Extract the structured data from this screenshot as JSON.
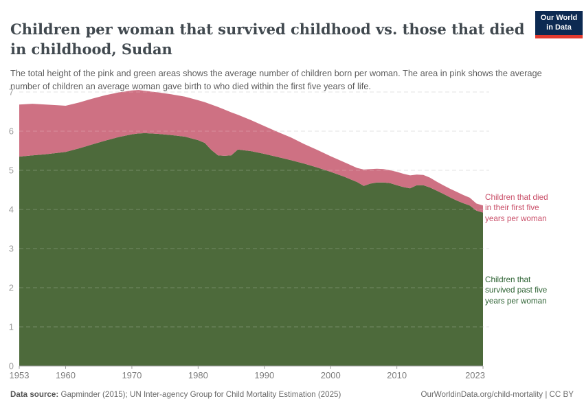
{
  "header": {
    "title": "Children per woman that survived childhood vs. those that died in childhood, Sudan",
    "subtitle": "The total height of the pink and green areas shows the average number of children born per woman. The area in pink shows the average number of children an average woman gave birth to who died within the first five years of life.",
    "logo": {
      "line1": "Our World",
      "line2": "in Data",
      "bg_color": "#0c2a52",
      "accent_color": "#e23a2e"
    }
  },
  "chart_data": {
    "type": "area",
    "stacked": true,
    "title": "Children per woman that survived childhood vs. those that died in childhood, Sudan",
    "xlabel": "",
    "ylabel": "",
    "xlim": [
      1953,
      2023
    ],
    "ylim": [
      0,
      7
    ],
    "xticks": [
      1953,
      1960,
      1970,
      1980,
      1990,
      2000,
      2010,
      2023
    ],
    "yticks": [
      0,
      1,
      2,
      3,
      4,
      5,
      6,
      7
    ],
    "grid": "horizontal-dashed",
    "legend_position": "right-inline-labels",
    "x": [
      1953,
      1955,
      1957,
      1959,
      1960,
      1962,
      1964,
      1966,
      1968,
      1970,
      1971,
      1972,
      1974,
      1976,
      1978,
      1980,
      1981,
      1982,
      1983,
      1984,
      1985,
      1986,
      1988,
      1990,
      1992,
      1994,
      1996,
      1998,
      2000,
      2002,
      2004,
      2005,
      2006,
      2007,
      2008,
      2009,
      2010,
      2011,
      2012,
      2013,
      2014,
      2015,
      2016,
      2017,
      2018,
      2019,
      2020,
      2021,
      2022,
      2023
    ],
    "series": [
      {
        "name": "Children that survived past five years per woman",
        "color": "#4d6a3b",
        "values": [
          5.35,
          5.38,
          5.41,
          5.45,
          5.47,
          5.56,
          5.66,
          5.76,
          5.85,
          5.92,
          5.94,
          5.95,
          5.93,
          5.9,
          5.86,
          5.77,
          5.7,
          5.52,
          5.38,
          5.37,
          5.38,
          5.53,
          5.49,
          5.42,
          5.34,
          5.26,
          5.17,
          5.07,
          4.96,
          4.84,
          4.7,
          4.6,
          4.66,
          4.69,
          4.69,
          4.67,
          4.62,
          4.57,
          4.54,
          4.62,
          4.62,
          4.56,
          4.48,
          4.4,
          4.31,
          4.23,
          4.16,
          4.1,
          3.97,
          3.92
        ]
      },
      {
        "name": "Children that died in their first five years per woman",
        "color": "#ce7183",
        "values": [
          1.33,
          1.32,
          1.27,
          1.21,
          1.18,
          1.17,
          1.17,
          1.16,
          1.14,
          1.12,
          1.11,
          1.08,
          1.06,
          1.04,
          1.02,
          1.02,
          1.04,
          1.16,
          1.24,
          1.18,
          1.1,
          0.89,
          0.79,
          0.71,
          0.64,
          0.58,
          0.5,
          0.45,
          0.4,
          0.37,
          0.36,
          0.42,
          0.37,
          0.35,
          0.34,
          0.33,
          0.34,
          0.34,
          0.33,
          0.27,
          0.26,
          0.25,
          0.23,
          0.22,
          0.22,
          0.22,
          0.21,
          0.2,
          0.18,
          0.18
        ]
      }
    ]
  },
  "annotations": {
    "died_label": "Children that died\nin their first five\nyears per woman",
    "died_color": "#c94e68",
    "survived_label": "Children that\nsurvived past five\nyears per woman",
    "survived_color": "#2e6334"
  },
  "footer": {
    "source_prefix": "Data source:",
    "source_rest": " Gapminder (2015); UN Inter-agency Group for Child Mortality Estimation (2025)",
    "link_text": "OurWorldinData.org/child-mortality | CC BY"
  }
}
